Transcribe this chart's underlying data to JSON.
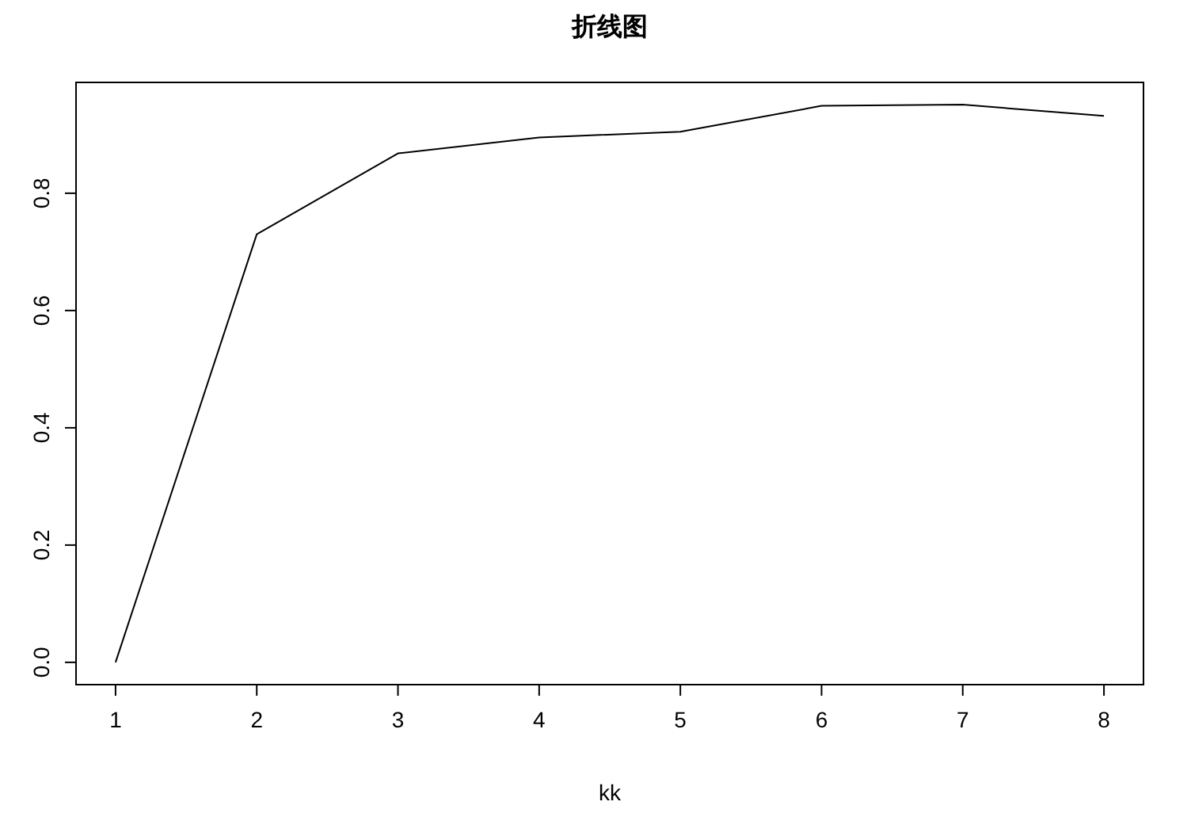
{
  "chart_data": {
    "type": "line",
    "title": "折线图",
    "xlabel": "kk",
    "x": [
      1,
      2,
      3,
      4,
      5,
      6,
      7,
      8
    ],
    "series": [
      {
        "color": "#000000",
        "values": [
          0,
          0.73,
          0.868,
          0.895,
          0.905,
          0.949,
          0.951,
          0.932
        ]
      }
    ],
    "xlim": [
      0.72,
      8.28
    ],
    "ylim": [
      -0.038,
      0.989
    ],
    "xticks": [
      1,
      2,
      3,
      4,
      5,
      6,
      7,
      8
    ],
    "yticks": [
      {
        "value": 0,
        "label": "0.0"
      },
      0.2,
      0.4,
      0.6,
      0.8
    ]
  }
}
